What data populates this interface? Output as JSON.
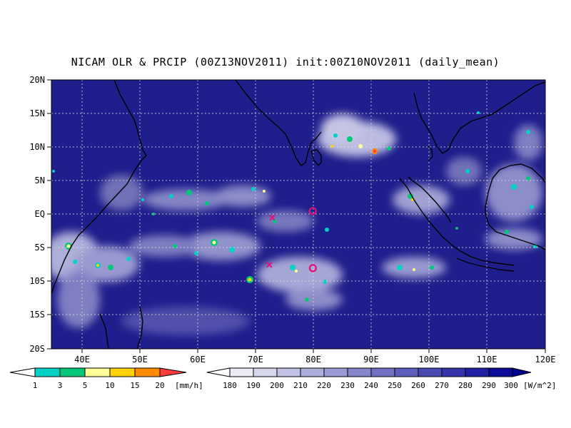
{
  "title": "NICAM OLR & PRCIP (00Z13NOV2011) init:00Z10NOV2011 (daily_mean)",
  "map": {
    "lon_range": [
      35,
      120
    ],
    "lat_range": [
      -20,
      20
    ],
    "lat_ticks": [
      "20N",
      "15N",
      "10N",
      "5N",
      "EQ",
      "5S",
      "10S",
      "15S",
      "20S"
    ],
    "lon_ticks": [
      "40E",
      "50E",
      "60E",
      "70E",
      "80E",
      "90E",
      "100E",
      "110E",
      "120E"
    ],
    "background_color": "#1c1c8a",
    "grid": "dotted",
    "markers": [
      {
        "type": "cross",
        "lon": 73,
        "lat": -0.5,
        "color": "#e0107a"
      },
      {
        "type": "circle",
        "lon": 80,
        "lat": 0.5,
        "color": "#e0107a"
      },
      {
        "type": "cross",
        "lon": 72.5,
        "lat": -7.5,
        "color": "#e0107a"
      },
      {
        "type": "circle",
        "lon": 80,
        "lat": -8,
        "color": "#e0107a"
      }
    ]
  },
  "precip_colorbar": {
    "labels": [
      "1",
      "3",
      "5",
      "10",
      "15",
      "20"
    ],
    "unit": "[mm/h]",
    "colors": [
      "#00d2c8",
      "#00c878",
      "#ffff96",
      "#ffd200",
      "#ff8c00",
      "#ff3c3c"
    ]
  },
  "olr_colorbar": {
    "labels": [
      "180",
      "190",
      "200",
      "210",
      "220",
      "230",
      "240",
      "250",
      "260",
      "270",
      "280",
      "290",
      "300"
    ],
    "unit": "[W/m^2]",
    "colors": [
      "#ffffff",
      "#ebebf6",
      "#d6d6ee",
      "#c2c2e6",
      "#aeaedd",
      "#9a9ad5",
      "#8585cc",
      "#7171c4",
      "#5d5dbb",
      "#4949b3",
      "#3434aa",
      "#2020a2",
      "#0c0c99",
      "#000090"
    ]
  }
}
